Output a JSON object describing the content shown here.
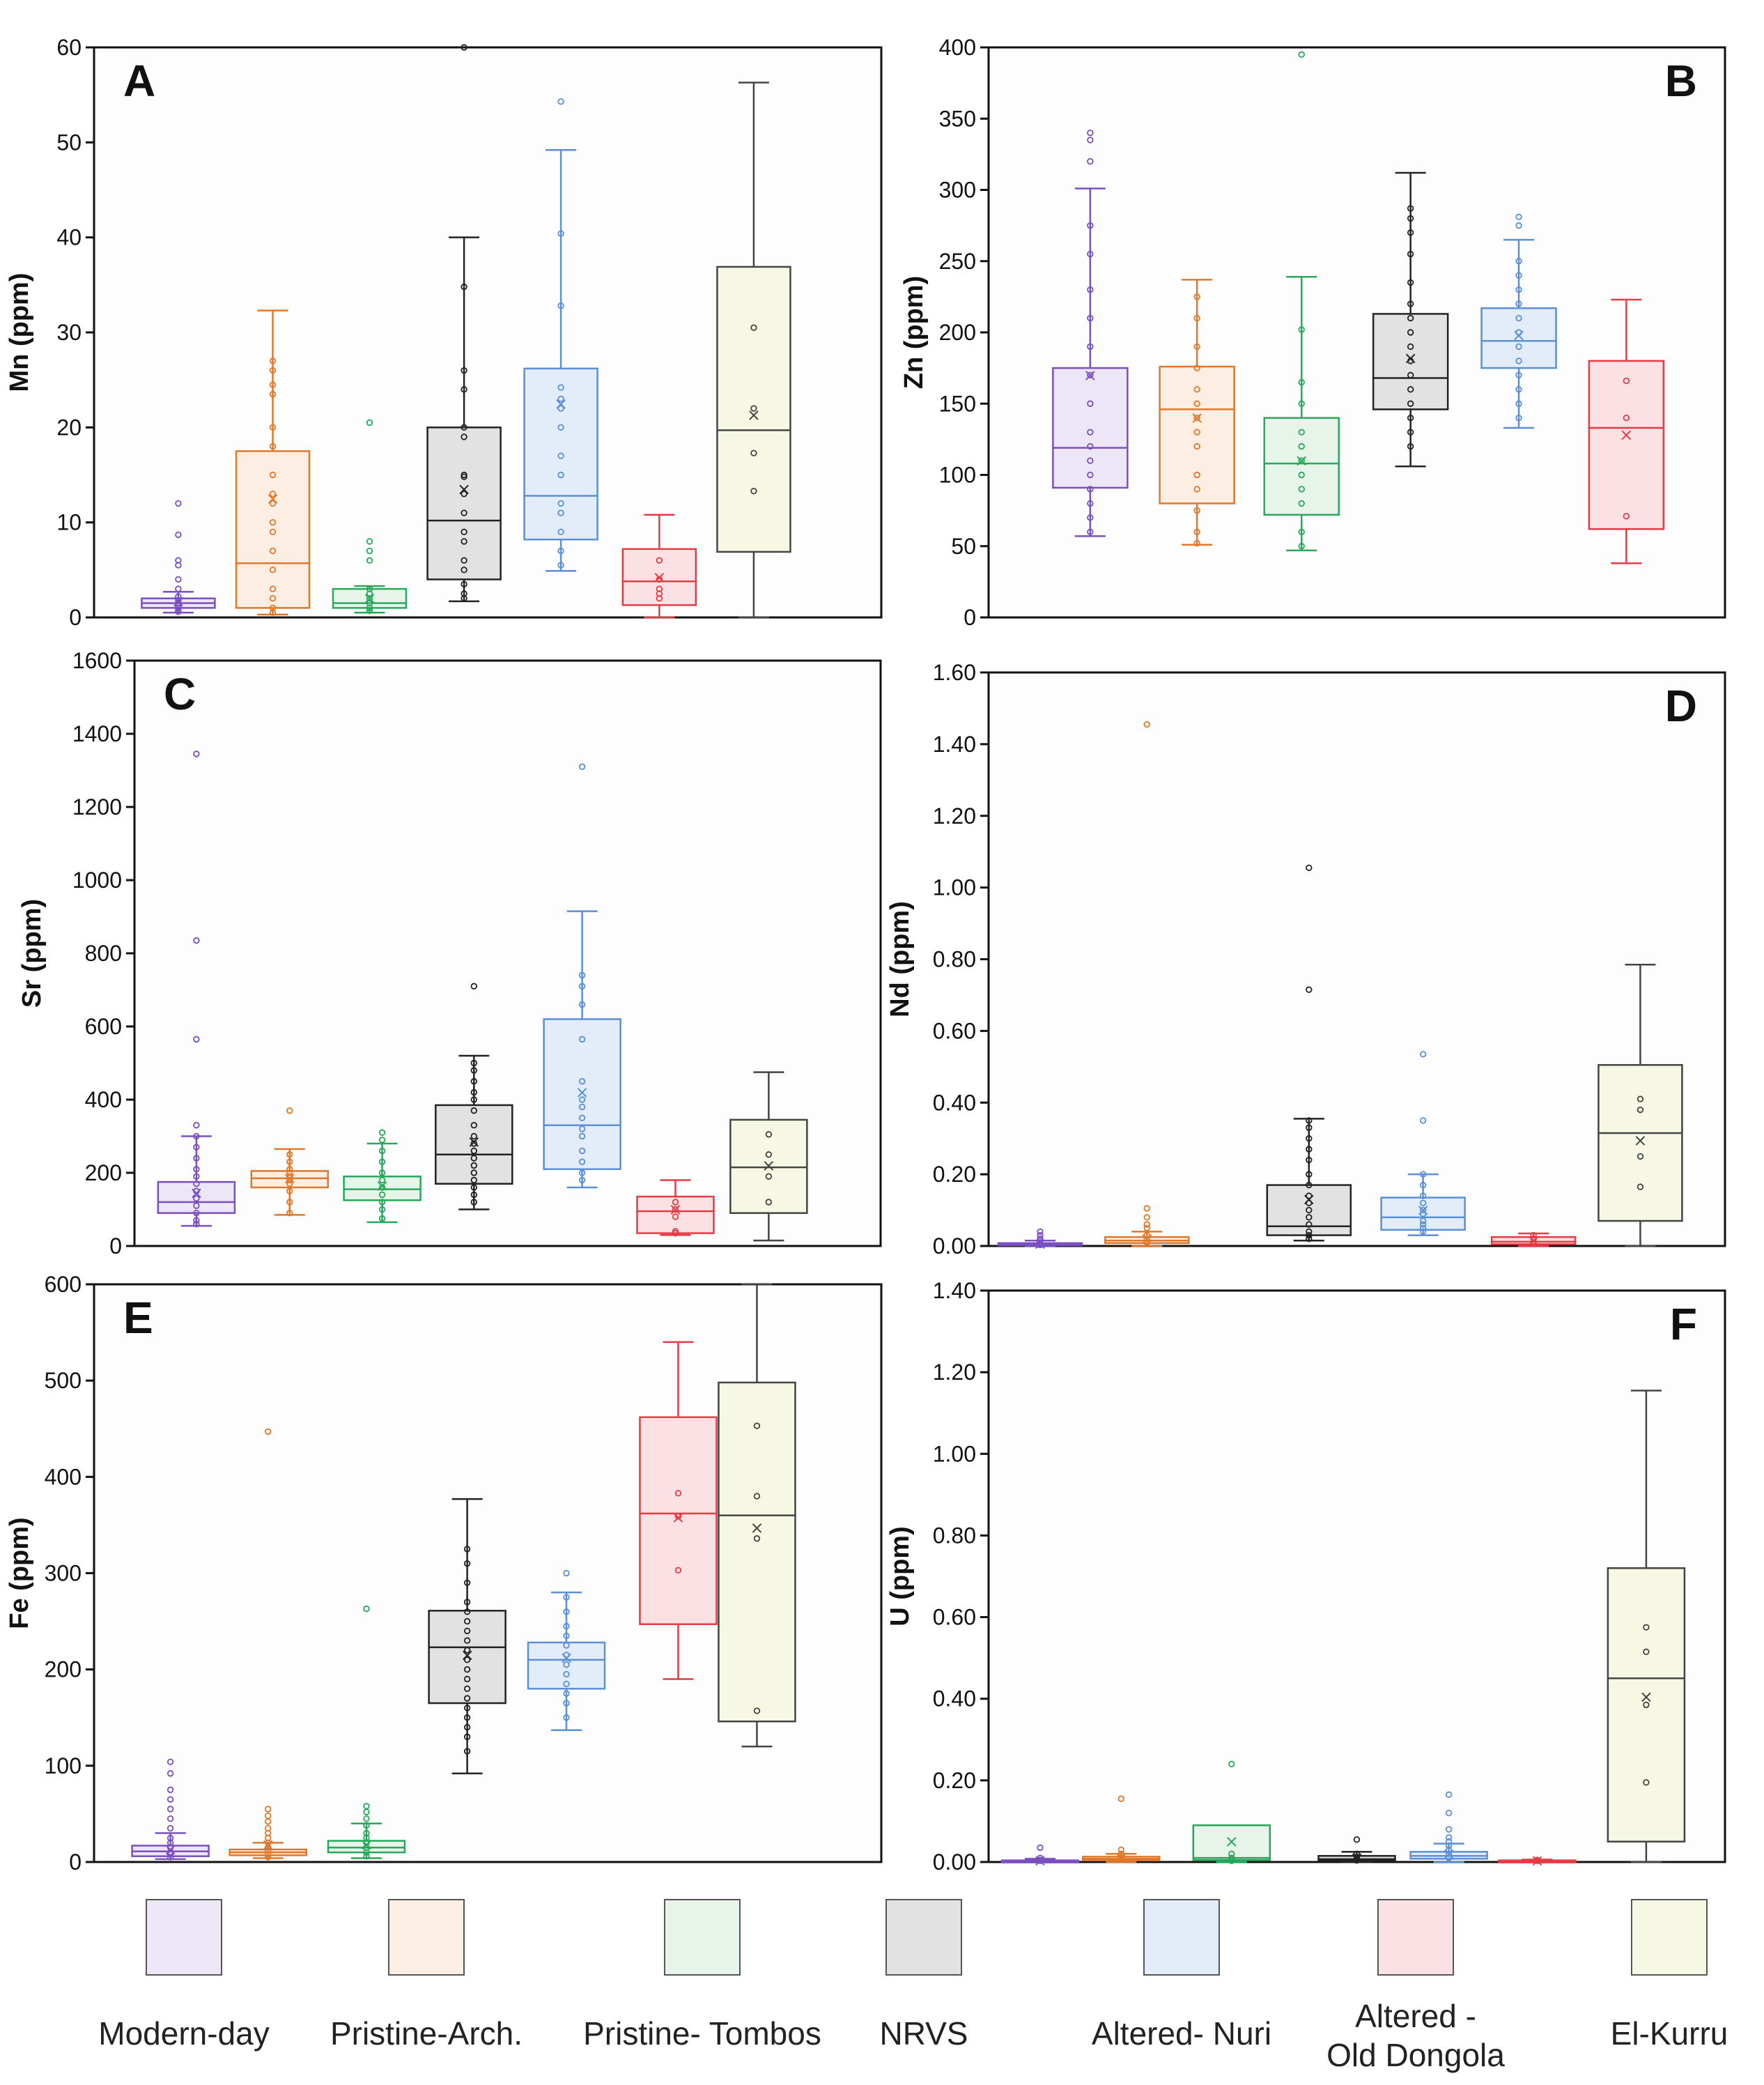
{
  "categories": [
    "Modern-day",
    "Pristine-Arch.",
    "Pristine- Tombos",
    "NRVS",
    "Altered- Nuri",
    "Altered - Old Dongola",
    "El-Kurru"
  ],
  "colors": {
    "Modern-day": {
      "stroke": "#7b4fbf",
      "fill": "#ede6f6"
    },
    "Pristine-Arch.": {
      "stroke": "#e0782b",
      "fill": "#fdeee3"
    },
    "Pristine- Tombos": {
      "stroke": "#27a85a",
      "fill": "#e6f4ea"
    },
    "NRVS": {
      "stroke": "#222222",
      "fill": "#e2e2e2"
    },
    "Altered- Nuri": {
      "stroke": "#5b8fd6",
      "fill": "#e3ecf9"
    },
    "Altered - Old Dongola": {
      "stroke": "#e63b45",
      "fill": "#fbe1e4"
    },
    "El-Kurru": {
      "stroke": "#444444",
      "fill": "#f7f8e4"
    }
  },
  "legend": [
    {
      "label": "Modern-day",
      "lines": [
        "Modern-day"
      ]
    },
    {
      "label": "Pristine-Arch.",
      "lines": [
        "Pristine-Arch."
      ]
    },
    {
      "label": "Pristine- Tombos",
      "lines": [
        "Pristine- Tombos"
      ]
    },
    {
      "label": "NRVS",
      "lines": [
        "NRVS"
      ]
    },
    {
      "label": "Altered- Nuri",
      "lines": [
        "Altered- Nuri"
      ]
    },
    {
      "label": "Altered - Old Dongola",
      "lines": [
        "Altered -",
        "Old Dongola"
      ]
    },
    {
      "label": "El-Kurru",
      "lines": [
        "El-Kurru"
      ]
    }
  ],
  "chart_data": [
    {
      "type": "box",
      "panel": "A",
      "ylabel": "Mn (ppm)",
      "ylim": [
        0,
        60
      ],
      "yticks": [
        0,
        10,
        20,
        30,
        40,
        50,
        60
      ],
      "ytick_labels": [
        "0",
        "10",
        "20",
        "30",
        "40",
        "50",
        "60"
      ],
      "series": [
        {
          "name": "Modern-day",
          "min": 0.5,
          "q1": 1.0,
          "median": 1.5,
          "q3": 2.0,
          "max": 2.7,
          "mean": 1.7,
          "points": [
            12,
            8.7,
            6,
            5.5,
            4,
            3,
            2.2,
            1.8,
            1.5,
            1.2,
            1,
            0.8,
            0.6
          ]
        },
        {
          "name": "Pristine-Arch.",
          "min": 0.3,
          "q1": 1.0,
          "median": 5.7,
          "q3": 17.5,
          "max": 32.3,
          "mean": 12.5,
          "points": [
            27,
            26,
            24.5,
            23.5,
            20,
            18,
            15,
            13,
            12,
            10,
            9,
            7,
            5,
            3,
            2,
            1,
            0.5
          ]
        },
        {
          "name": "Pristine- Tombos",
          "min": 0.5,
          "q1": 1.0,
          "median": 1.5,
          "q3": 3.0,
          "max": 3.3,
          "mean": 2.0,
          "points": [
            20.5,
            8,
            7,
            6,
            3,
            2.5,
            2,
            1.5,
            1,
            0.7
          ]
        },
        {
          "name": "NRVS",
          "min": 1.7,
          "q1": 4.0,
          "median": 10.2,
          "q3": 20.0,
          "max": 40.0,
          "mean": 13.5,
          "points": [
            60,
            34.8,
            26,
            24,
            20,
            19,
            15,
            14.8,
            13,
            11,
            9,
            8,
            6,
            5,
            3.5,
            2.5,
            2
          ]
        },
        {
          "name": "Altered- Nuri",
          "min": 4.9,
          "q1": 8.2,
          "median": 12.8,
          "q3": 26.2,
          "max": 49.2,
          "mean": 22.5,
          "points": [
            54.3,
            40.4,
            32.8,
            24.2,
            23,
            22,
            20,
            17,
            15,
            12,
            11,
            9,
            7,
            5.5
          ]
        },
        {
          "name": "Altered - Old Dongola",
          "min": 0.0,
          "q1": 1.3,
          "median": 3.8,
          "q3": 7.2,
          "max": 10.8,
          "mean": 4.2,
          "points": [
            6,
            4,
            3,
            2.5,
            2
          ]
        },
        {
          "name": "El-Kurru",
          "min": 0.0,
          "q1": 6.9,
          "median": 19.7,
          "q3": 36.9,
          "max": 56.3,
          "mean": 21.3,
          "points": [
            30.5,
            22,
            17.3,
            13.3
          ]
        }
      ]
    },
    {
      "type": "box",
      "panel": "B",
      "ylabel": "Zn (ppm)",
      "ylim": [
        0,
        400
      ],
      "yticks": [
        0,
        50,
        100,
        150,
        200,
        250,
        300,
        350,
        400
      ],
      "ytick_labels": [
        "0",
        "50",
        "100",
        "150",
        "200",
        "250",
        "300",
        "350",
        "400"
      ],
      "series": [
        {
          "name": "Modern-day",
          "min": 57,
          "q1": 91,
          "median": 119,
          "q3": 175,
          "max": 301,
          "mean": 170,
          "points": [
            340,
            335,
            320,
            275,
            255,
            230,
            210,
            190,
            170,
            150,
            130,
            120,
            110,
            100,
            90,
            80,
            70,
            60
          ]
        },
        {
          "name": "Pristine-Arch.",
          "min": 51,
          "q1": 80,
          "median": 146,
          "q3": 176,
          "max": 237,
          "mean": 140,
          "points": [
            225,
            210,
            190,
            175,
            160,
            150,
            140,
            130,
            120,
            100,
            90,
            75,
            60,
            52
          ]
        },
        {
          "name": "Pristine- Tombos",
          "min": 47,
          "q1": 72,
          "median": 108,
          "q3": 140,
          "max": 239,
          "mean": 110,
          "points": [
            395,
            202,
            165,
            150,
            130,
            120,
            110,
            100,
            90,
            80,
            60,
            50
          ]
        },
        {
          "name": "NRVS",
          "min": 106,
          "q1": 146,
          "median": 168,
          "q3": 213,
          "max": 312,
          "mean": 182,
          "points": [
            287,
            280,
            270,
            255,
            235,
            220,
            210,
            200,
            190,
            180,
            170,
            160,
            150,
            140,
            130,
            120
          ]
        },
        {
          "name": "Altered- Nuri",
          "min": 133,
          "q1": 175,
          "median": 194,
          "q3": 217,
          "max": 265,
          "mean": 198,
          "points": [
            281,
            275,
            250,
            240,
            230,
            220,
            210,
            200,
            190,
            180,
            170,
            160,
            150,
            140
          ]
        },
        {
          "name": "Altered - Old Dongola",
          "min": 38,
          "q1": 62,
          "median": 133,
          "q3": 180,
          "max": 223,
          "mean": 128,
          "points": [
            166,
            140,
            71
          ]
        }
      ]
    },
    {
      "type": "box",
      "panel": "C",
      "ylabel": "Sr (ppm)",
      "ylim": [
        0,
        1600
      ],
      "yticks": [
        0,
        200,
        400,
        600,
        800,
        1000,
        1200,
        1400,
        1600
      ],
      "ytick_labels": [
        "0",
        "200",
        "400",
        "600",
        "800",
        "1000",
        "1200",
        "1400",
        "1600"
      ],
      "series": [
        {
          "name": "Modern-day",
          "min": 55,
          "q1": 90,
          "median": 120,
          "q3": 175,
          "max": 300,
          "mean": 145,
          "points": [
            1345,
            835,
            565,
            330,
            300,
            270,
            240,
            210,
            190,
            170,
            150,
            130,
            110,
            90,
            70,
            60
          ]
        },
        {
          "name": "Pristine-Arch.",
          "min": 85,
          "q1": 160,
          "median": 185,
          "q3": 205,
          "max": 265,
          "mean": 185,
          "points": [
            370,
            250,
            230,
            210,
            200,
            190,
            180,
            170,
            150,
            120,
            90
          ]
        },
        {
          "name": "Pristine- Tombos",
          "min": 65,
          "q1": 125,
          "median": 155,
          "q3": 190,
          "max": 280,
          "mean": 165,
          "points": [
            310,
            290,
            260,
            230,
            200,
            180,
            160,
            140,
            120,
            100,
            75
          ]
        },
        {
          "name": "NRVS",
          "min": 100,
          "q1": 170,
          "median": 250,
          "q3": 385,
          "max": 520,
          "mean": 285,
          "points": [
            710,
            500,
            480,
            450,
            420,
            400,
            370,
            330,
            300,
            280,
            260,
            240,
            220,
            200,
            180,
            160,
            140,
            120
          ]
        },
        {
          "name": "Altered- Nuri",
          "min": 160,
          "q1": 210,
          "median": 330,
          "q3": 620,
          "max": 915,
          "mean": 420,
          "points": [
            1310,
            740,
            710,
            660,
            565,
            450,
            400,
            380,
            350,
            320,
            300,
            260,
            230,
            200,
            180
          ]
        },
        {
          "name": "Altered - Old Dongola",
          "min": 30,
          "q1": 35,
          "median": 95,
          "q3": 135,
          "max": 180,
          "mean": 100,
          "points": [
            120,
            100,
            80,
            40,
            35
          ]
        },
        {
          "name": "El-Kurru",
          "min": 15,
          "q1": 90,
          "median": 215,
          "q3": 345,
          "max": 475,
          "mean": 220,
          "points": [
            305,
            250,
            190,
            120
          ]
        }
      ]
    },
    {
      "type": "box",
      "panel": "D",
      "ylabel": "Nd (ppm)",
      "ylim": [
        0,
        1.6
      ],
      "yticks": [
        0,
        0.2,
        0.4,
        0.6,
        0.8,
        1.0,
        1.2,
        1.4,
        1.6
      ],
      "ytick_labels": [
        "0.00",
        "0.20",
        "0.40",
        "0.60",
        "0.80",
        "1.00",
        "1.20",
        "1.40",
        "1.60"
      ],
      "series": [
        {
          "name": "Modern-day",
          "min": 0.0,
          "q1": 0.002,
          "median": 0.005,
          "q3": 0.008,
          "max": 0.015,
          "mean": 0.006,
          "points": [
            0.04,
            0.03,
            0.02,
            0.015,
            0.01,
            0.005,
            0.003
          ]
        },
        {
          "name": "Pristine-Arch.",
          "min": 0.0,
          "q1": 0.008,
          "median": 0.015,
          "q3": 0.025,
          "max": 0.04,
          "mean": 0.02,
          "points": [
            1.455,
            0.105,
            0.08,
            0.06,
            0.05,
            0.03,
            0.02,
            0.01
          ]
        },
        {
          "name": "NRVS",
          "min": 0.015,
          "q1": 0.03,
          "median": 0.055,
          "q3": 0.17,
          "max": 0.355,
          "mean": 0.13,
          "points": [
            1.055,
            0.715,
            0.35,
            0.33,
            0.3,
            0.27,
            0.24,
            0.2,
            0.17,
            0.14,
            0.12,
            0.1,
            0.08,
            0.06,
            0.04,
            0.03,
            0.02
          ]
        },
        {
          "name": "Altered- Nuri",
          "min": 0.03,
          "q1": 0.045,
          "median": 0.08,
          "q3": 0.135,
          "max": 0.2,
          "mean": 0.1,
          "points": [
            0.535,
            0.35,
            0.2,
            0.17,
            0.14,
            0.12,
            0.1,
            0.09,
            0.07,
            0.06,
            0.05,
            0.04
          ]
        },
        {
          "name": "Altered - Old Dongola",
          "min": 0.0,
          "q1": 0.005,
          "median": 0.012,
          "q3": 0.025,
          "max": 0.035,
          "mean": 0.015,
          "points": [
            0.03,
            0.02,
            0.01
          ]
        },
        {
          "name": "El-Kurru",
          "min": 0.0,
          "q1": 0.07,
          "median": 0.315,
          "q3": 0.505,
          "max": 0.785,
          "mean": 0.295,
          "points": [
            0.41,
            0.38,
            0.25,
            0.165
          ]
        }
      ]
    },
    {
      "type": "box",
      "panel": "E",
      "ylabel": "Fe (ppm)",
      "ylim": [
        0,
        600
      ],
      "yticks": [
        0,
        100,
        200,
        300,
        400,
        500,
        600
      ],
      "ytick_labels": [
        "0",
        "100",
        "200",
        "300",
        "400",
        "500",
        "600"
      ],
      "series": [
        {
          "name": "Modern-day",
          "min": 3,
          "q1": 6,
          "median": 11,
          "q3": 17,
          "max": 30,
          "mean": 13,
          "points": [
            104,
            92,
            75,
            65,
            55,
            45,
            35,
            25,
            20,
            15,
            10,
            8,
            5
          ]
        },
        {
          "name": "Pristine-Arch.",
          "min": 4,
          "q1": 7,
          "median": 10,
          "q3": 13,
          "max": 20,
          "mean": 18,
          "points": [
            447,
            55,
            48,
            42,
            35,
            30,
            25,
            20,
            15,
            12,
            8,
            5
          ]
        },
        {
          "name": "Pristine- Tombos",
          "min": 4,
          "q1": 10,
          "median": 15,
          "q3": 22,
          "max": 40,
          "mean": 18,
          "points": [
            263,
            58,
            52,
            45,
            38,
            30,
            25,
            20,
            15,
            10,
            6
          ]
        },
        {
          "name": "NRVS",
          "min": 92,
          "q1": 165,
          "median": 223,
          "q3": 261,
          "max": 377,
          "mean": 215,
          "points": [
            325,
            310,
            290,
            270,
            260,
            250,
            240,
            230,
            220,
            210,
            200,
            190,
            180,
            170,
            160,
            150,
            140,
            130,
            115
          ]
        },
        {
          "name": "Altered- Nuri",
          "min": 137,
          "q1": 180,
          "median": 210,
          "q3": 228,
          "max": 280,
          "mean": 212,
          "points": [
            300,
            275,
            260,
            245,
            235,
            225,
            215,
            205,
            195,
            185,
            175,
            165,
            150
          ]
        },
        {
          "name": "Altered - Old Dongola",
          "min": 190,
          "q1": 247,
          "median": 362,
          "q3": 462,
          "max": 540,
          "mean": 358,
          "points": [
            383,
            359,
            303
          ]
        },
        {
          "name": "El-Kurru",
          "min": 120,
          "q1": 146,
          "median": 360,
          "q3": 498,
          "max": 600,
          "mean": 347,
          "points": [
            453,
            380,
            336,
            157
          ]
        }
      ]
    },
    {
      "type": "box",
      "panel": "F",
      "ylabel": "U (ppm)",
      "ylim": [
        0,
        1.4
      ],
      "yticks": [
        0,
        0.2,
        0.4,
        0.6,
        0.8,
        1.0,
        1.2,
        1.4
      ],
      "ytick_labels": [
        "0.00",
        "0.20",
        "0.40",
        "0.60",
        "0.80",
        "1.00",
        "1.20",
        "1.40"
      ],
      "series": [
        {
          "name": "Modern-day",
          "min": 0.0,
          "q1": 0.001,
          "median": 0.002,
          "q3": 0.004,
          "max": 0.008,
          "mean": 0.003,
          "points": [
            0.035,
            0.01,
            0.005,
            0.003
          ]
        },
        {
          "name": "Pristine-Arch.",
          "min": 0.0,
          "q1": 0.004,
          "median": 0.008,
          "q3": 0.013,
          "max": 0.02,
          "mean": 0.01,
          "points": [
            0.155,
            0.03,
            0.02,
            0.015,
            0.01,
            0.005
          ]
        },
        {
          "name": "Pristine- Tombos",
          "min": 0.0,
          "q1": 0.005,
          "median": 0.01,
          "q3": 0.09,
          "max": 0.09,
          "mean": 0.05,
          "points": [
            0.24,
            0.02,
            0.01,
            0.005,
            0.003
          ]
        },
        {
          "name": "NRVS",
          "min": 0.0,
          "q1": 0.003,
          "median": 0.007,
          "q3": 0.015,
          "max": 0.025,
          "mean": 0.01,
          "points": [
            0.055,
            0.02,
            0.012,
            0.008,
            0.004
          ]
        },
        {
          "name": "Altered- Nuri",
          "min": 0.0,
          "q1": 0.008,
          "median": 0.015,
          "q3": 0.025,
          "max": 0.045,
          "mean": 0.02,
          "points": [
            0.165,
            0.12,
            0.08,
            0.06,
            0.05,
            0.04,
            0.03,
            0.02,
            0.01
          ]
        },
        {
          "name": "Altered - Old Dongola",
          "min": 0.0,
          "q1": 0.001,
          "median": 0.002,
          "q3": 0.004,
          "max": 0.006,
          "mean": 0.003,
          "points": [
            0.005,
            0.003
          ]
        },
        {
          "name": "El-Kurru",
          "min": 0.0,
          "q1": 0.05,
          "median": 0.45,
          "q3": 0.72,
          "max": 1.155,
          "mean": 0.405,
          "points": [
            0.575,
            0.515,
            0.385,
            0.195
          ]
        }
      ]
    }
  ]
}
